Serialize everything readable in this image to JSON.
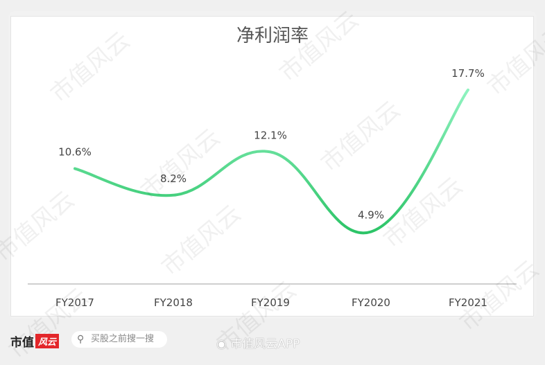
{
  "chart_data": {
    "type": "line",
    "title": "净利润率",
    "categories": [
      "FY2017",
      "FY2018",
      "FY2019",
      "FY2020",
      "FY2021"
    ],
    "values": [
      10.6,
      8.2,
      12.1,
      4.9,
      17.7
    ],
    "data_labels": [
      "10.6%",
      "8.2%",
      "12.1%",
      "4.9%",
      "17.7%"
    ],
    "ylim": [
      0,
      20
    ],
    "grid": false,
    "smooth": true,
    "colors": {
      "line_start": "#62d992",
      "line_end": "#8ff3c0",
      "line_low": "#2cc467"
    }
  },
  "watermark": "市值风云",
  "footer": {
    "logo_text": "市值",
    "logo_mark": "风云",
    "search_placeholder": "买股之前搜一搜",
    "search_icon": "search-icon",
    "weibo_icon": "weibo-icon",
    "weibo_text": "市值风云APP"
  }
}
